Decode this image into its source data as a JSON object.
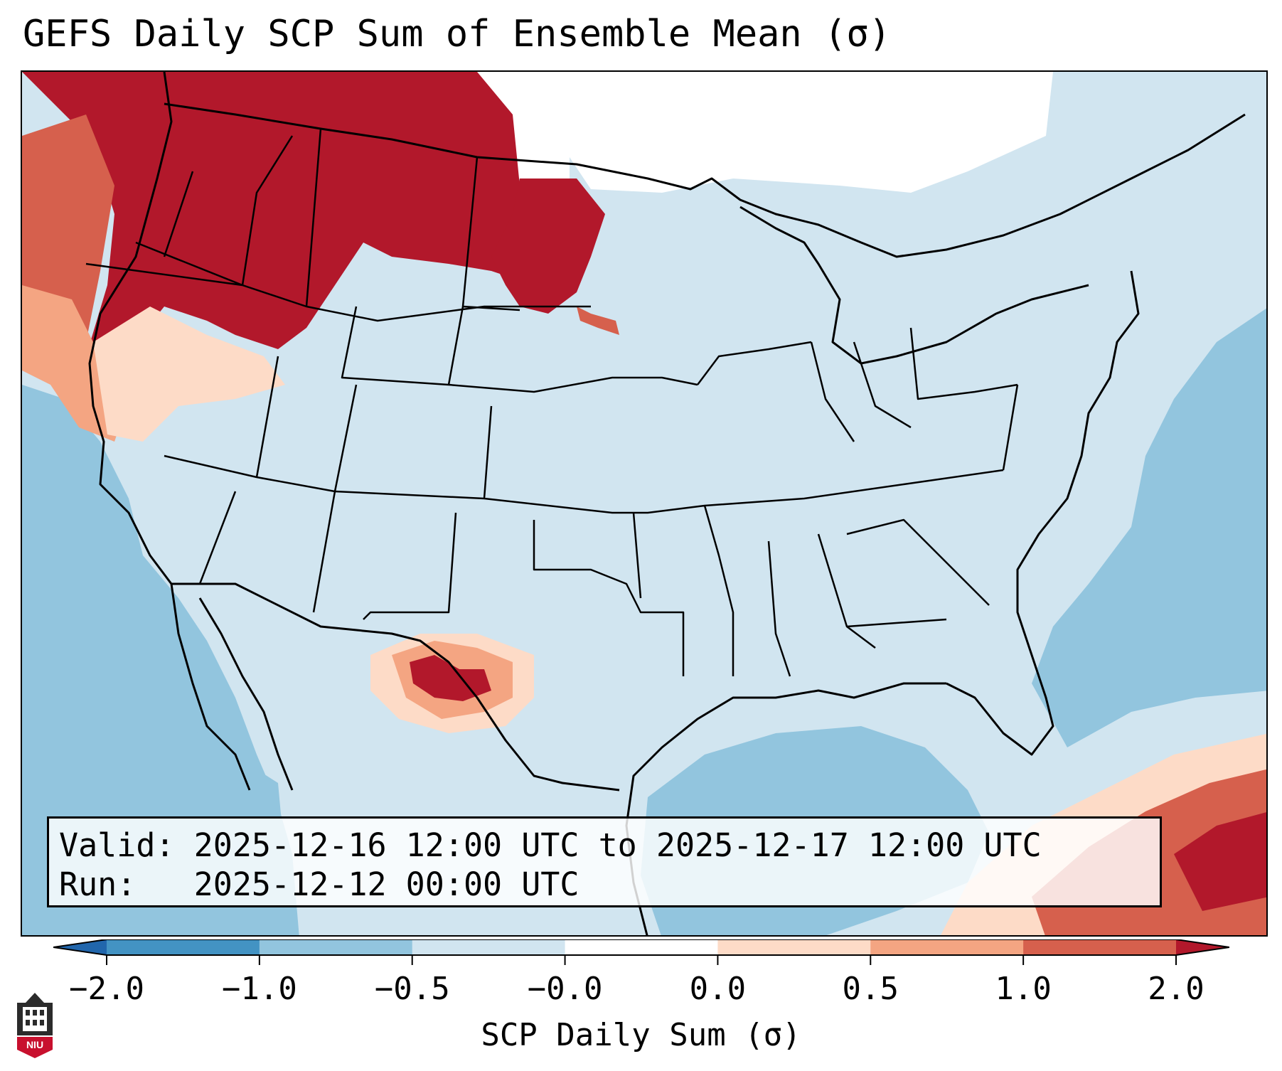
{
  "title": "GEFS Daily SCP Sum of Ensemble Mean (σ)",
  "info": {
    "valid": "Valid: 2025-12-16 12:00 UTC to 2025-12-17 12:00 UTC",
    "run": "Run:   2025-12-12 00:00 UTC"
  },
  "colorbar": {
    "label": "SCP Daily Sum (σ)",
    "ticks": [
      "−2.0",
      "−1.0",
      "−0.5",
      "−0.0",
      "0.0",
      "0.5",
      "1.0",
      "2.0"
    ],
    "colors": [
      "#2166ac",
      "#4393c3",
      "#92c5de",
      "#d1e5f0",
      "#ffffff",
      "#fddbc7",
      "#f4a582",
      "#d6604d",
      "#b2182b"
    ]
  },
  "logo": {
    "text": "NIU"
  }
}
